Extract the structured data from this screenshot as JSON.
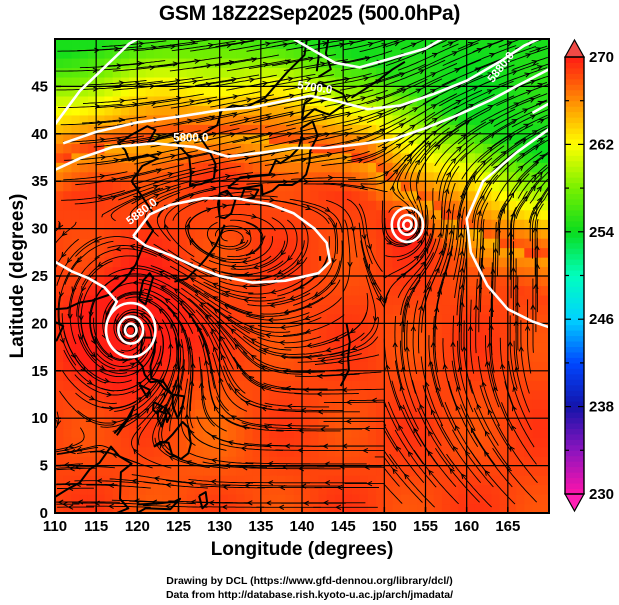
{
  "title": "GSM 18Z22Sep2025 (500.0hPa)",
  "credits": {
    "line1": "Drawing by DCL (https://www.gfd-dennou.org/library/dcl/)",
    "line2": "Data from http://database.rish.kyoto-u.ac.jp/arch/jmadata/"
  },
  "map": {
    "projection": "equirectangular",
    "lon_range": [
      110,
      170
    ],
    "lat_range": [
      0,
      50
    ],
    "xlabel": "Longitude (degrees)",
    "ylabel": "Latitude  (degrees)",
    "x_ticks": [
      110,
      115,
      120,
      125,
      130,
      135,
      140,
      145,
      150,
      155,
      160,
      165
    ],
    "y_ticks": [
      0,
      5,
      10,
      15,
      20,
      25,
      30,
      35,
      40,
      45
    ],
    "grid": true,
    "shaded_field": "temperature (K)",
    "contour_field": "geopotential height (m)",
    "vector_field": "wind streamlines",
    "contour_labels": [
      {
        "text": "5700.0",
        "lon": 141.5,
        "lat": 44.5
      },
      {
        "text": "5800.0",
        "lon": 126.5,
        "lat": 39.2
      },
      {
        "text": "5880.0",
        "lon": 120.8,
        "lat": 31.5
      },
      {
        "text": "5880.0",
        "lon": 164.5,
        "lat": 46.8
      }
    ],
    "features": [
      {
        "name": "typhoon-center",
        "lon": 119.2,
        "lat": 19.3
      },
      {
        "name": "cyclone-center",
        "lon": 152.8,
        "lat": 30.4
      },
      {
        "name": "subtropical-high-center",
        "lon": 131.0,
        "lat": 29.0
      }
    ]
  },
  "colorbar": {
    "min": 230,
    "max": 270,
    "tick_labels": [
      "270",
      "262",
      "254",
      "246",
      "238",
      "230"
    ],
    "tick_values": [
      270,
      262,
      254,
      246,
      238,
      230
    ],
    "extend": "both",
    "colors": [
      "#ff1493",
      "#a020c8",
      "#1e1ec8",
      "#0050ff",
      "#00c8ff",
      "#00ffc8",
      "#00e646",
      "#64f000",
      "#ffff00",
      "#ffa000",
      "#ff3c14"
    ]
  },
  "chart_data": {
    "type": "heatmap",
    "title": "GSM 18Z22Sep2025 (500.0hPa)",
    "xlabel": "Longitude (degrees)",
    "ylabel": "Latitude  (degrees)",
    "xlim": [
      110,
      170
    ],
    "ylim": [
      0,
      50
    ],
    "x_tick_labels": [
      "110",
      "115",
      "120",
      "125",
      "130",
      "135",
      "140",
      "145",
      "150",
      "155",
      "160",
      "165"
    ],
    "y_tick_labels": [
      "0",
      "5",
      "10",
      "15",
      "20",
      "25",
      "30",
      "35",
      "40",
      "45"
    ],
    "colorbar_range": [
      230,
      270
    ],
    "colorbar_ticks": [
      230,
      238,
      246,
      254,
      262,
      270
    ],
    "grid": true,
    "contour_levels": [
      5700,
      5800,
      5880
    ],
    "approx_field_by_latitude": [
      {
        "lat": 47,
        "value": 254
      },
      {
        "lat": 42,
        "value": 258
      },
      {
        "lat": 38,
        "value": 263
      },
      {
        "lat": 33,
        "value": 267
      },
      {
        "lat": 25,
        "value": 268
      },
      {
        "lat": 19,
        "value": 270
      },
      {
        "lat": 10,
        "value": 268
      },
      {
        "lat": 2,
        "value": 267
      }
    ]
  }
}
